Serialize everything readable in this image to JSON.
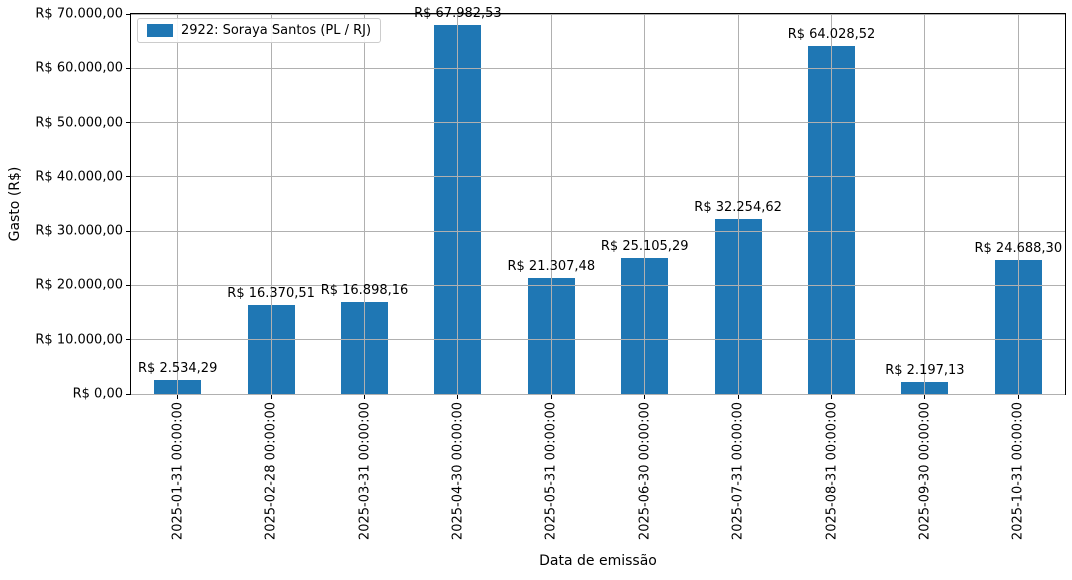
{
  "figure": {
    "background": "#ffffff",
    "bar_color": "#1f77b4",
    "grid_color": "#b0b0b0",
    "spine_color": "#000000",
    "text_color": "#000000"
  },
  "legend": {
    "label": "2922: Soraya Santos (PL / RJ)",
    "swatch_color": "#1f77b4",
    "position": "upper left"
  },
  "chart_data": {
    "type": "bar",
    "title": "",
    "xlabel": "Data de emissão",
    "ylabel": "Gasto (R$)",
    "ylim": [
      0,
      70000
    ],
    "ytick_step": 10000,
    "grid": true,
    "grid_above_bars": true,
    "legend_entries": [
      "2922: Soraya Santos (PL / RJ)"
    ],
    "categories": [
      "2025-01-31 00:00:00",
      "2025-02-28 00:00:00",
      "2025-03-31 00:00:00",
      "2025-04-30 00:00:00",
      "2025-05-31 00:00:00",
      "2025-06-30 00:00:00",
      "2025-07-31 00:00:00",
      "2025-08-31 00:00:00",
      "2025-09-30 00:00:00",
      "2025-10-31 00:00:00"
    ],
    "values": [
      2534.29,
      16370.51,
      16898.16,
      67982.53,
      21307.48,
      25105.29,
      32254.62,
      64028.52,
      2197.13,
      24688.3
    ],
    "bar_labels": [
      "R$ 2.534,29",
      "R$ 16.370,51",
      "R$ 16.898,16",
      "R$ 67.982,53",
      "R$ 21.307,48",
      "R$ 25.105,29",
      "R$ 32.254,62",
      "R$ 64.028,52",
      "R$ 2.197,13",
      "R$ 24.688,30"
    ],
    "ytick_labels": [
      "R$ 0,00",
      "R$ 10.000,00",
      "R$ 20.000,00",
      "R$ 30.000,00",
      "R$ 40.000,00",
      "R$ 50.000,00",
      "R$ 60.000,00",
      "R$ 70.000,00"
    ]
  }
}
